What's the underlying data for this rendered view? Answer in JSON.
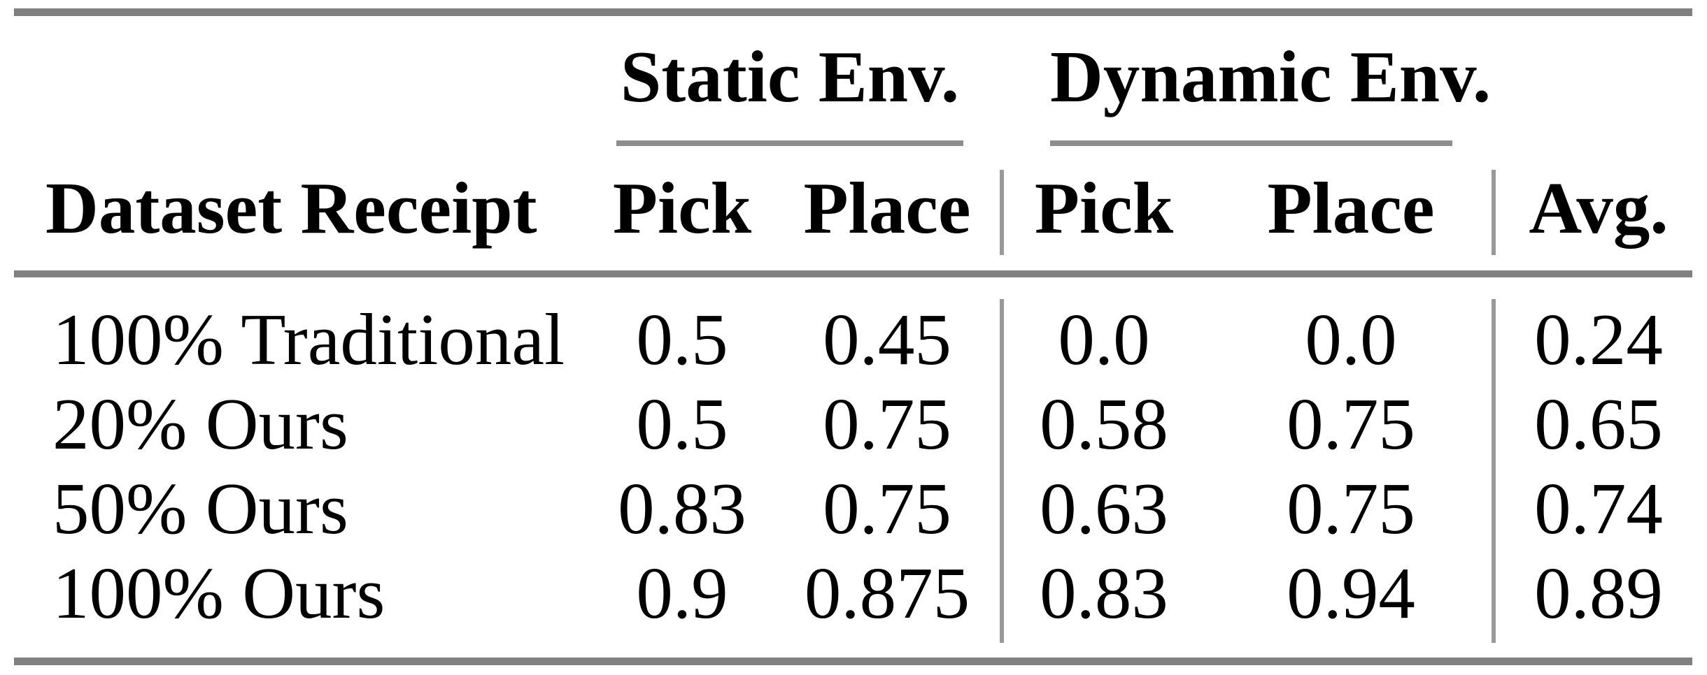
{
  "table": {
    "group_headers": {
      "static": "Static Env.",
      "dynamic": "Dynamic Env."
    },
    "columns": {
      "row_header": "Dataset Receipt",
      "static_pick": "Pick",
      "static_place": "Place",
      "dynamic_pick": "Pick",
      "dynamic_place": "Place",
      "avg": "Avg."
    },
    "rows": [
      {
        "label": "100% Traditional",
        "values": [
          "0.5",
          "0.45",
          "0.0",
          "0.0",
          "0.24"
        ]
      },
      {
        "label": "20% Ours",
        "values": [
          "0.5",
          "0.75",
          "0.58",
          "0.75",
          "0.65"
        ]
      },
      {
        "label": "50% Ours",
        "values": [
          "0.83",
          "0.75",
          "0.63",
          "0.75",
          "0.74"
        ]
      },
      {
        "label": "100% Ours",
        "values": [
          "0.9",
          "0.875",
          "0.83",
          "0.94",
          "0.89"
        ]
      }
    ],
    "rule_colors": {
      "thick": "#808080",
      "thin": "#8d8d8d",
      "vertical": "#999999"
    }
  }
}
